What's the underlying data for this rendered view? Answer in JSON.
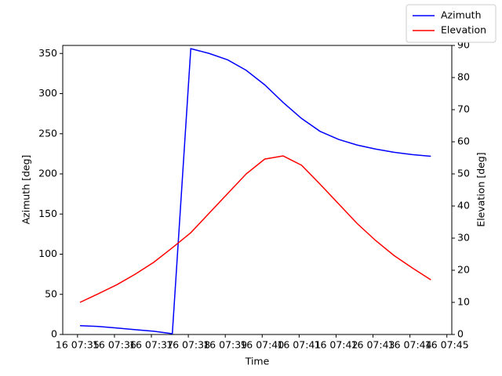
{
  "chart_data": {
    "type": "line",
    "xlabel": "Time",
    "ylabel": "Azimuth [deg]",
    "y2label": "Elevation [deg]",
    "x": [
      "16 07:35:04",
      "16 07:35:34",
      "16 07:36:04",
      "16 07:36:34",
      "16 07:37:04",
      "16 07:37:34",
      "16 07:38:04",
      "16 07:38:34",
      "16 07:39:04",
      "16 07:39:34",
      "16 07:40:04",
      "16 07:40:34",
      "16 07:41:04",
      "16 07:41:34",
      "16 07:42:04",
      "16 07:42:34",
      "16 07:43:04",
      "16 07:43:34",
      "16 07:44:04",
      "16 07:44:34"
    ],
    "series": [
      {
        "name": "Azimuth",
        "color": "#0000ff",
        "values": [
          11,
          10,
          8,
          6,
          4,
          1,
          356,
          350,
          342,
          329,
          311,
          289,
          269,
          253,
          243,
          236,
          231,
          227,
          224,
          222
        ]
      },
      {
        "name": "Elevation",
        "color": "#ff0000",
        "axis": "y2",
        "values": [
          10,
          12.7,
          15.5,
          18.8,
          22.5,
          27,
          31.7,
          37.8,
          43.9,
          50,
          54.6,
          55.6,
          52.7,
          46.8,
          40.7,
          34.6,
          29.3,
          24.6,
          20.7,
          17
        ]
      }
    ],
    "xlim": [
      "16 07:34:36",
      "16 07:45:08"
    ],
    "xticks": [
      "16 07:35",
      "16 07:36",
      "16 07:37",
      "16 07:38",
      "16 07:39",
      "16 07:40",
      "16 07:41",
      "16 07:42",
      "16 07:43",
      "16 07:44",
      "16 07:45"
    ],
    "ylim": [
      0,
      360
    ],
    "yticks": [
      0,
      50,
      100,
      150,
      200,
      250,
      300,
      350
    ],
    "y2lim": [
      0,
      90
    ],
    "y2ticks": [
      0,
      10,
      20,
      30,
      40,
      50,
      60,
      70,
      80,
      90
    ],
    "legend": "upper right"
  }
}
